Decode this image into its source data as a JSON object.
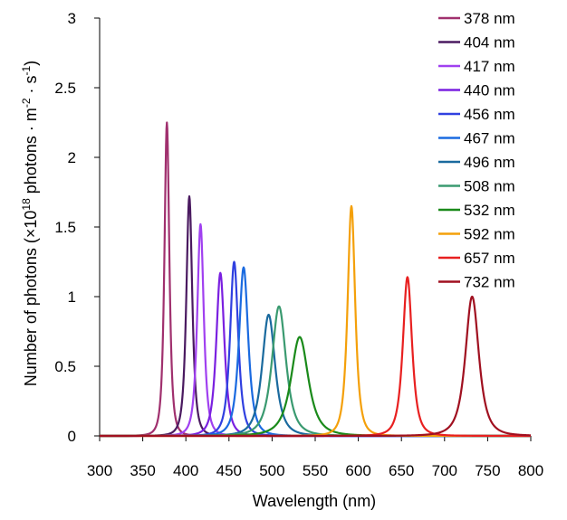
{
  "chart_data": {
    "type": "line",
    "xlabel": "Wavelength (nm)",
    "ylabel_parts": {
      "before": "Number of photons (×10",
      "exp1": "18",
      "middle": " photons · m",
      "exp2": "-2",
      "middle2": " · s",
      "exp3": "-1",
      "after": ")"
    },
    "xlim": [
      300,
      800
    ],
    "ylim": [
      0,
      3
    ],
    "x_ticks": [
      300,
      350,
      400,
      450,
      500,
      550,
      600,
      650,
      700,
      750,
      800
    ],
    "y_ticks": [
      0,
      0.5,
      1,
      1.5,
      2,
      2.5,
      3
    ],
    "x_tick_labels": [
      "300",
      "350",
      "400",
      "450",
      "500",
      "550",
      "600",
      "650",
      "700",
      "750",
      "800"
    ],
    "y_tick_labels": [
      "0",
      "0.5",
      "1",
      "1.5",
      "2",
      "2.5",
      "3"
    ],
    "grid": false,
    "legend_position": "top-right",
    "series": [
      {
        "name": "378 nm",
        "peak_x": 378,
        "peak_y": 2.25,
        "fwhm": 9,
        "color": "#a0306e"
      },
      {
        "name": "404 nm",
        "peak_x": 404,
        "peak_y": 1.72,
        "fwhm": 11,
        "color": "#4a1a60"
      },
      {
        "name": "417 nm",
        "peak_x": 417,
        "peak_y": 1.52,
        "fwhm": 12,
        "color": "#a040f0"
      },
      {
        "name": "440 nm",
        "peak_x": 440,
        "peak_y": 1.17,
        "fwhm": 15,
        "color": "#7a20e0"
      },
      {
        "name": "456 nm",
        "peak_x": 456,
        "peak_y": 1.25,
        "fwhm": 15,
        "color": "#3040e0"
      },
      {
        "name": "467 nm",
        "peak_x": 467,
        "peak_y": 1.21,
        "fwhm": 17,
        "color": "#1a6ae0"
      },
      {
        "name": "496 nm",
        "peak_x": 496,
        "peak_y": 0.87,
        "fwhm": 24,
        "color": "#1a6a9e"
      },
      {
        "name": "508 nm",
        "peak_x": 508,
        "peak_y": 0.93,
        "fwhm": 26,
        "color": "#3a9a70"
      },
      {
        "name": "532 nm",
        "peak_x": 532,
        "peak_y": 0.71,
        "fwhm": 32,
        "color": "#1a8a1a"
      },
      {
        "name": "592 nm",
        "peak_x": 592,
        "peak_y": 1.65,
        "fwhm": 14,
        "color": "#f4a00a"
      },
      {
        "name": "657 nm",
        "peak_x": 657,
        "peak_y": 1.14,
        "fwhm": 17,
        "color": "#e82020"
      },
      {
        "name": "732 nm",
        "peak_x": 732,
        "peak_y": 1.0,
        "fwhm": 25,
        "color": "#a01020"
      }
    ]
  }
}
